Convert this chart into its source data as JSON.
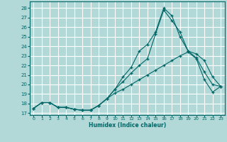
{
  "xlabel": "Humidex (Indice chaleur)",
  "background_color": "#b2d8d8",
  "grid_color": "#ffffff",
  "line_color": "#006666",
  "xlim": [
    -0.5,
    23.5
  ],
  "ylim": [
    16.8,
    28.7
  ],
  "yticks": [
    17,
    18,
    19,
    20,
    21,
    22,
    23,
    24,
    25,
    26,
    27,
    28
  ],
  "xticks": [
    0,
    1,
    2,
    3,
    4,
    5,
    6,
    7,
    8,
    9,
    10,
    11,
    12,
    13,
    14,
    15,
    16,
    17,
    18,
    19,
    20,
    21,
    22,
    23
  ],
  "line1_x": [
    0,
    1,
    2,
    3,
    4,
    5,
    6,
    7,
    8,
    9,
    10,
    11,
    12,
    13,
    14,
    15,
    16,
    17,
    18,
    19,
    20,
    21,
    22,
    23
  ],
  "line1_y": [
    17.5,
    18.1,
    18.1,
    17.6,
    17.6,
    17.4,
    17.3,
    17.3,
    17.8,
    18.5,
    19.1,
    19.5,
    20.0,
    20.5,
    21.0,
    21.5,
    22.0,
    22.5,
    23.0,
    23.4,
    22.7,
    20.5,
    19.2,
    19.8
  ],
  "line2_x": [
    0,
    1,
    2,
    3,
    4,
    5,
    6,
    7,
    8,
    9,
    10,
    11,
    12,
    13,
    14,
    15,
    16,
    17,
    18,
    19,
    20,
    21,
    22,
    23
  ],
  "line2_y": [
    17.5,
    18.1,
    18.1,
    17.6,
    17.6,
    17.4,
    17.3,
    17.3,
    17.8,
    18.5,
    19.5,
    20.3,
    21.2,
    22.0,
    22.7,
    25.3,
    27.8,
    26.7,
    25.5,
    23.5,
    22.8,
    21.3,
    20.0,
    19.8
  ],
  "line3_x": [
    0,
    1,
    2,
    3,
    4,
    5,
    6,
    7,
    8,
    9,
    10,
    11,
    12,
    13,
    14,
    15,
    16,
    17,
    18,
    19,
    20,
    21,
    22,
    23
  ],
  "line3_y": [
    17.5,
    18.1,
    18.1,
    17.6,
    17.6,
    17.4,
    17.3,
    17.3,
    17.8,
    18.5,
    19.5,
    20.8,
    21.8,
    23.5,
    24.2,
    25.5,
    28.0,
    27.2,
    25.0,
    23.5,
    23.2,
    22.5,
    20.8,
    19.8
  ]
}
